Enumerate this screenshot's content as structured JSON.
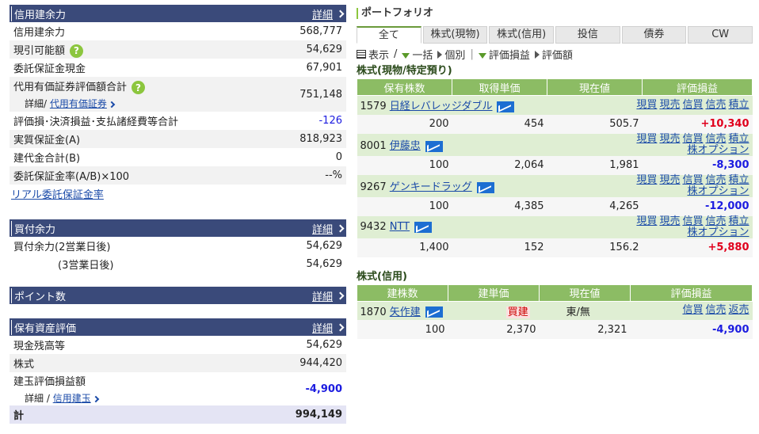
{
  "credit": {
    "title": "信用建余力",
    "detail": "詳細",
    "rows": [
      {
        "label": "信用建余力",
        "value": "568,777"
      },
      {
        "label": "現引可能額",
        "value": "54,629"
      },
      {
        "label": "委託保証金現金",
        "value": "67,901"
      },
      {
        "label": "代用有価証券評価額合計",
        "value": "751,148",
        "sub": "詳細/",
        "sub_link": "代用有価証券"
      },
      {
        "label": "評価損･決済損益･支払諸経費等合計",
        "value": "-126"
      },
      {
        "label": "実質保証金(A)",
        "value": "818,923"
      },
      {
        "label": "建代金合計(B)",
        "value": "0"
      },
      {
        "label": "委託保証金率(A/B)×100",
        "value": "--%"
      }
    ],
    "link": "リアル委託保証金率"
  },
  "buy": {
    "title": "買付余力",
    "detail": "詳細",
    "rows": [
      {
        "label": "買付余力(2営業日後)",
        "value": "54,629"
      },
      {
        "label": "(3営業日後)",
        "value": "54,629"
      }
    ]
  },
  "points": {
    "title": "ポイント数",
    "detail": "詳細"
  },
  "assets": {
    "title": "保有資産評価",
    "detail": "詳細",
    "rows": [
      {
        "label": "現金残高等",
        "value": "54,629"
      },
      {
        "label": "株式",
        "value": "944,420"
      },
      {
        "label": "建玉評価損益額",
        "value": "-4,900",
        "sub": "詳細 / ",
        "sub_link": "信用建玉"
      }
    ],
    "total_label": "計",
    "total_value": "994,149"
  },
  "portfolio": {
    "title": "ポートフォリオ",
    "tabs": [
      "全て",
      "株式(現物)",
      "株式(信用)",
      "投信",
      "債券",
      "CW"
    ],
    "toolbar": {
      "display": "表示",
      "sep": "/",
      "ikkatsu": "一括",
      "kobetsu": "個別",
      "hyoka_soneki": "評価損益",
      "hyoka_gaku": "評価額"
    },
    "cash_title": "株式(現物/特定預り)",
    "cash_headers": [
      "保有株数",
      "取得単価",
      "現在値",
      "評価損益"
    ],
    "cash_rows": [
      {
        "code": "1579",
        "name": "日経レバレッジダブル",
        "actions": [
          "現買",
          "現売",
          "信買",
          "信売",
          "積立"
        ],
        "shares": "200",
        "cost": "454",
        "price": "505.7",
        "pl": "+10,340"
      },
      {
        "code": "8001",
        "name": "伊藤忠",
        "actions": [
          "現買",
          "現売",
          "信買",
          "信売",
          "積立"
        ],
        "option": "株オプション",
        "shares": "100",
        "cost": "2,064",
        "price": "1,981",
        "pl": "-8,300"
      },
      {
        "code": "9267",
        "name": "ゲンキードラッグ",
        "actions": [
          "現買",
          "現売",
          "信買",
          "信売",
          "積立"
        ],
        "option": "株オプション",
        "shares": "100",
        "cost": "4,385",
        "price": "4,265",
        "pl": "-12,000"
      },
      {
        "code": "9432",
        "name": "NTT",
        "actions": [
          "現買",
          "現売",
          "信買",
          "信売",
          "積立"
        ],
        "option": "株オプション",
        "shares": "1,400",
        "cost": "152",
        "price": "156.2",
        "pl": "+5,880"
      }
    ],
    "margin_title": "株式(信用)",
    "margin_headers": [
      "建株数",
      "建単価",
      "現在値",
      "評価損益"
    ],
    "margin_rows": [
      {
        "code": "1870",
        "name": "矢作建",
        "type": "買建",
        "market": "東/無",
        "actions": [
          "信買",
          "信売",
          "返売"
        ],
        "shares": "100",
        "cost": "2,370",
        "price": "2,321",
        "pl": "-4,900"
      }
    ]
  }
}
